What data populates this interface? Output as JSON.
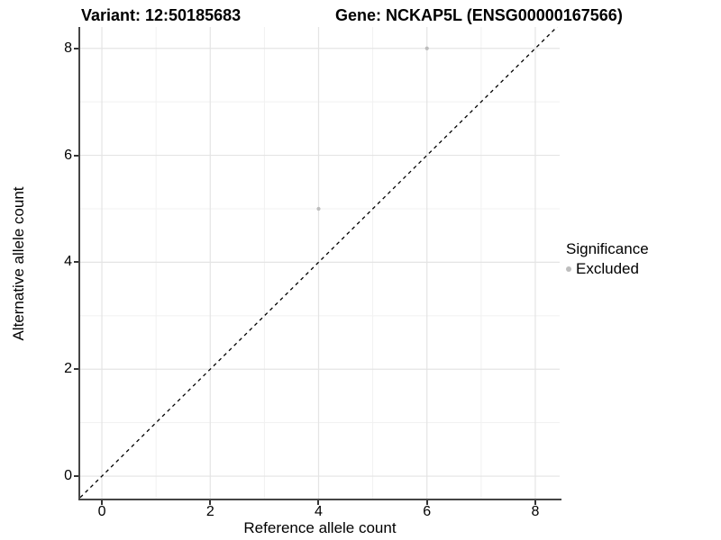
{
  "header": {
    "variant_title": "Variant: 12:50185683",
    "gene_title": "Gene: NCKAP5L (ENSG00000167566)"
  },
  "chart_data": {
    "type": "scatter",
    "title": "Variant: 12:50185683  Gene: NCKAP5L (ENSG00000167566)",
    "xlabel": "Reference allele count",
    "ylabel": "Alternative allele count",
    "xlim": [
      -0.4,
      8.45
    ],
    "ylim": [
      -0.42,
      8.4
    ],
    "x_ticks": [
      0,
      2,
      4,
      6,
      8
    ],
    "y_ticks": [
      0,
      2,
      4,
      6,
      8
    ],
    "x_minor_gridlines": [
      1,
      3,
      5,
      7
    ],
    "y_minor_gridlines": [
      1,
      3,
      5,
      7
    ],
    "grid": true,
    "series": [
      {
        "name": "Excluded",
        "color": "#bdbdbd",
        "points": [
          {
            "x": 6,
            "y": 8
          },
          {
            "x": 4,
            "y": 5
          }
        ]
      }
    ],
    "identity_line": {
      "slope": 1,
      "intercept": 0,
      "style": "dashed",
      "color": "#000000"
    },
    "legend": {
      "title": "Significance",
      "position": "right",
      "entries": [
        {
          "label": "Excluded",
          "color": "#bdbdbd"
        }
      ]
    }
  },
  "style_colors": {
    "major_grid": "#e4e4e4",
    "minor_grid": "#f1f1f1",
    "axis_line": "#454545",
    "point": "#bdbdbd",
    "text": "#000000"
  }
}
